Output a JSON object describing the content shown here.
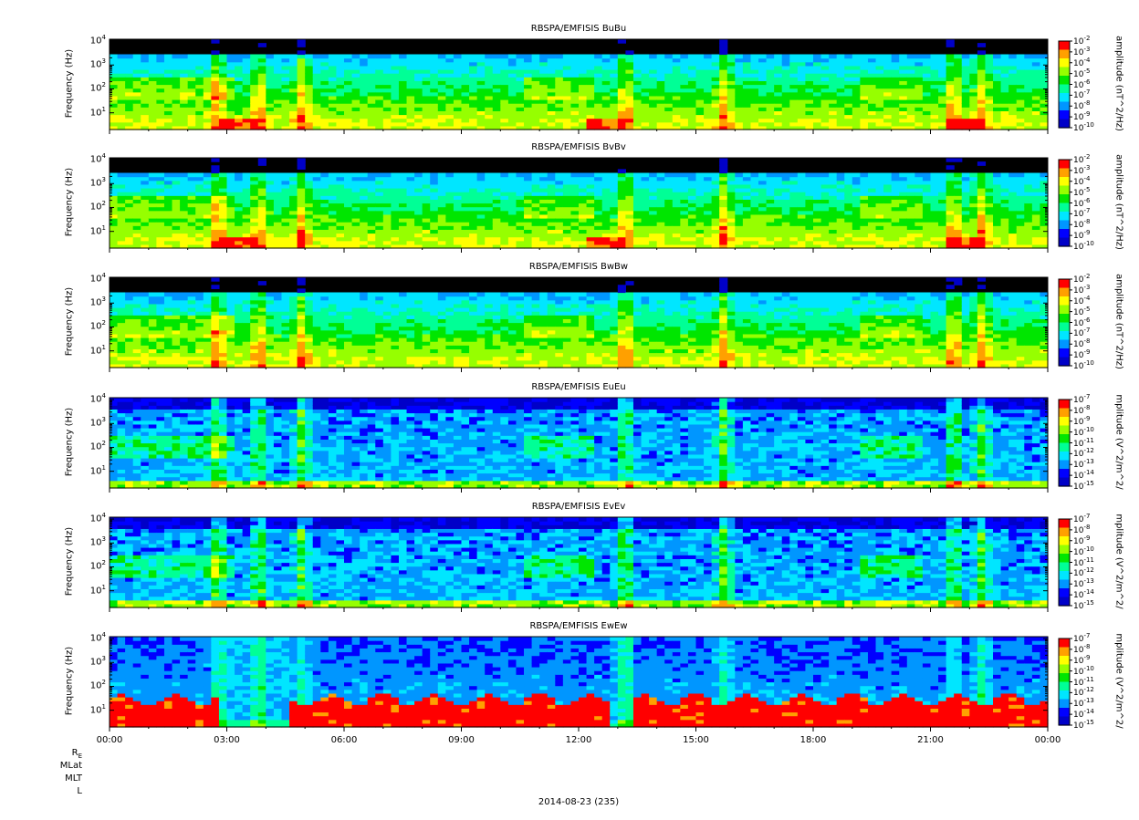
{
  "chart_data": [
    {
      "type": "heatmap",
      "title": "RBSPA/EMFISIS  BuBu",
      "ylabel": "Frequency (Hz)",
      "zlabel": "amplitude (nT^2/Hz)",
      "yscale": "log",
      "ylim": [
        2,
        12000
      ],
      "yticks": [
        "10^1",
        "10^2",
        "10^3",
        "10^4"
      ],
      "zscale": "log",
      "zlim": [
        -10,
        -2
      ],
      "zticks": [
        "10^-2",
        "10^-3",
        "10^-4",
        "10^-5",
        "10^-6",
        "10^-7",
        "10^-8",
        "10^-9",
        "10^-10"
      ],
      "variant": "b"
    },
    {
      "type": "heatmap",
      "title": "RBSPA/EMFISIS  BvBv",
      "ylabel": "Frequency (Hz)",
      "zlabel": "amplitude (nT^2/Hz)",
      "yscale": "log",
      "ylim": [
        2,
        12000
      ],
      "yticks": [
        "10^1",
        "10^2",
        "10^3",
        "10^4"
      ],
      "zscale": "log",
      "zlim": [
        -10,
        -2
      ],
      "zticks": [
        "10^-2",
        "10^-3",
        "10^-4",
        "10^-5",
        "10^-6",
        "10^-7",
        "10^-8",
        "10^-9",
        "10^-10"
      ],
      "variant": "b"
    },
    {
      "type": "heatmap",
      "title": "RBSPA/EMFISIS  BwBw",
      "ylabel": "Frequency (Hz)",
      "zlabel": "amplitude (nT^2/Hz)",
      "yscale": "log",
      "ylim": [
        2,
        12000
      ],
      "yticks": [
        "10^1",
        "10^2",
        "10^3",
        "10^4"
      ],
      "zscale": "log",
      "zlim": [
        -10,
        -2
      ],
      "zticks": [
        "10^-2",
        "10^-3",
        "10^-4",
        "10^-5",
        "10^-6",
        "10^-7",
        "10^-8",
        "10^-9",
        "10^-10"
      ],
      "variant": "bw"
    },
    {
      "type": "heatmap",
      "title": "RBSPA/EMFISIS  EuEu",
      "ylabel": "Frequency (Hz)",
      "zlabel": "mplitude (V^2/m^2/",
      "yscale": "log",
      "ylim": [
        2,
        12000
      ],
      "yticks": [
        "10^1",
        "10^2",
        "10^3",
        "10^4"
      ],
      "zscale": "log",
      "zlim": [
        -15,
        -7
      ],
      "zticks": [
        "10^-7",
        "10^-8",
        "10^-9",
        "10^-10",
        "10^-11",
        "10^-12",
        "10^-13",
        "10^-14",
        "10^-15"
      ],
      "variant": "e"
    },
    {
      "type": "heatmap",
      "title": "RBSPA/EMFISIS  EvEv",
      "ylabel": "Frequency (Hz)",
      "zlabel": "mplitude (V^2/m^2/",
      "yscale": "log",
      "ylim": [
        2,
        12000
      ],
      "yticks": [
        "10^1",
        "10^2",
        "10^3",
        "10^4"
      ],
      "zscale": "log",
      "zlim": [
        -15,
        -7
      ],
      "zticks": [
        "10^-7",
        "10^-8",
        "10^-9",
        "10^-10",
        "10^-11",
        "10^-12",
        "10^-13",
        "10^-14",
        "10^-15"
      ],
      "variant": "e"
    },
    {
      "type": "heatmap",
      "title": "RBSPA/EMFISIS  EwEw",
      "ylabel": "Frequency (Hz)",
      "zlabel": "mplitude (V^2/m^2/",
      "yscale": "log",
      "ylim": [
        2,
        12000
      ],
      "yticks": [
        "10^1",
        "10^2",
        "10^3",
        "10^4"
      ],
      "zscale": "log",
      "zlim": [
        -15,
        -7
      ],
      "zticks": [
        "10^-7",
        "10^-8",
        "10^-9",
        "10^-10",
        "10^-11",
        "10^-12",
        "10^-13",
        "10^-14",
        "10^-15"
      ],
      "variant": "ew"
    }
  ],
  "x_axis": {
    "ticks": [
      "00:00",
      "03:00",
      "06:00",
      "09:00",
      "12:00",
      "15:00",
      "18:00",
      "21:00",
      "00:00"
    ],
    "range_hours": [
      0,
      24
    ]
  },
  "orbit_labels": [
    "R",
    "MLat",
    "MLT",
    "L"
  ],
  "orbit_label_subscript": "E",
  "date_label": "2014-08-23 (235)",
  "colors": {
    "colormap": [
      "#0000c8",
      "#0000ff",
      "#0096ff",
      "#00e6ff",
      "#00ff96",
      "#00e600",
      "#96ff00",
      "#ffff00",
      "#ffa000",
      "#ff0000"
    ],
    "background": "#000000",
    "frame": "#000000"
  }
}
